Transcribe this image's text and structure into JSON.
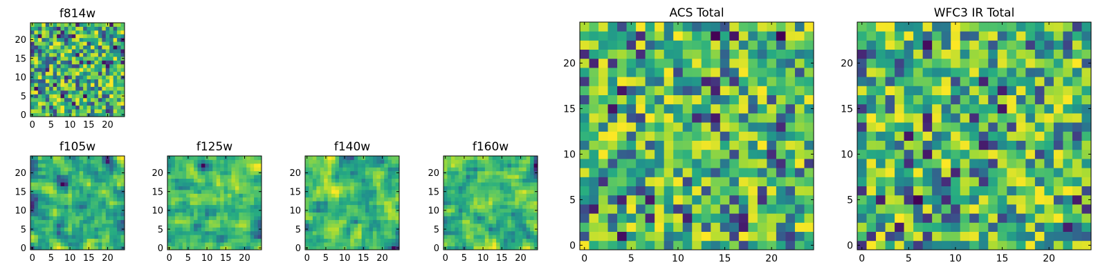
{
  "chart_data": [
    {
      "type": "heatmap",
      "title": "f814w",
      "size": 24,
      "xlim": [
        0,
        24
      ],
      "ylim": [
        0,
        24
      ],
      "xticks": [
        0,
        5,
        10,
        15,
        20
      ],
      "yticks": [
        0,
        5,
        10,
        15,
        20
      ],
      "xtick_labels": [
        "0",
        "5",
        "10",
        "15",
        "20"
      ],
      "ytick_labels": [
        "0",
        "5",
        "10",
        "15",
        "20"
      ],
      "colormap": "viridis",
      "seed": 11,
      "smooth": 0
    },
    {
      "type": "heatmap",
      "title": "f105w",
      "size": 24,
      "xlim": [
        0,
        24
      ],
      "ylim": [
        0,
        24
      ],
      "xticks": [
        0,
        5,
        10,
        15,
        20
      ],
      "yticks": [
        0,
        5,
        10,
        15,
        20
      ],
      "xtick_labels": [
        "0",
        "5",
        "10",
        "15",
        "20"
      ],
      "ytick_labels": [
        "0",
        "5",
        "10",
        "15",
        "20"
      ],
      "colormap": "viridis",
      "seed": 23,
      "smooth": 1
    },
    {
      "type": "heatmap",
      "title": "f125w",
      "size": 24,
      "xlim": [
        0,
        24
      ],
      "ylim": [
        0,
        24
      ],
      "xticks": [
        0,
        5,
        10,
        15,
        20
      ],
      "yticks": [
        0,
        5,
        10,
        15,
        20
      ],
      "xtick_labels": [
        "0",
        "5",
        "10",
        "15",
        "20"
      ],
      "ytick_labels": [
        "0",
        "5",
        "10",
        "15",
        "20"
      ],
      "colormap": "viridis",
      "seed": 37,
      "smooth": 1
    },
    {
      "type": "heatmap",
      "title": "f140w",
      "size": 24,
      "xlim": [
        0,
        24
      ],
      "ylim": [
        0,
        24
      ],
      "xticks": [
        0,
        5,
        10,
        15,
        20
      ],
      "yticks": [
        0,
        5,
        10,
        15,
        20
      ],
      "xtick_labels": [
        "0",
        "5",
        "10",
        "15",
        "20"
      ],
      "ytick_labels": [
        "0",
        "5",
        "10",
        "15",
        "20"
      ],
      "colormap": "viridis",
      "seed": 41,
      "smooth": 1
    },
    {
      "type": "heatmap",
      "title": "f160w",
      "size": 24,
      "xlim": [
        0,
        24
      ],
      "ylim": [
        0,
        24
      ],
      "xticks": [
        0,
        5,
        10,
        15,
        20
      ],
      "yticks": [
        0,
        5,
        10,
        15,
        20
      ],
      "xtick_labels": [
        "0",
        "5",
        "10",
        "15",
        "20"
      ],
      "ytick_labels": [
        "0",
        "5",
        "10",
        "15",
        "20"
      ],
      "colormap": "viridis",
      "seed": 53,
      "smooth": 1
    },
    {
      "type": "heatmap",
      "title": "ACS Total",
      "size": 24,
      "xlim": [
        0,
        24
      ],
      "ylim": [
        0,
        24
      ],
      "xticks": [
        0,
        5,
        10,
        15,
        20
      ],
      "yticks": [
        0,
        5,
        10,
        15,
        20
      ],
      "xtick_labels": [
        "0",
        "5",
        "10",
        "15",
        "20"
      ],
      "ytick_labels": [
        "0",
        "5",
        "10",
        "15",
        "20"
      ],
      "colormap": "viridis",
      "seed": 67,
      "smooth": 0
    },
    {
      "type": "heatmap",
      "title": "WFC3 IR Total",
      "size": 24,
      "xlim": [
        0,
        24
      ],
      "ylim": [
        0,
        24
      ],
      "xticks": [
        0,
        5,
        10,
        15,
        20
      ],
      "yticks": [
        0,
        5,
        10,
        15,
        20
      ],
      "xtick_labels": [
        "0",
        "5",
        "10",
        "15",
        "20"
      ],
      "ytick_labels": [
        "0",
        "5",
        "10",
        "15",
        "20"
      ],
      "colormap": "viridis",
      "seed": 79,
      "smooth": 0
    }
  ]
}
